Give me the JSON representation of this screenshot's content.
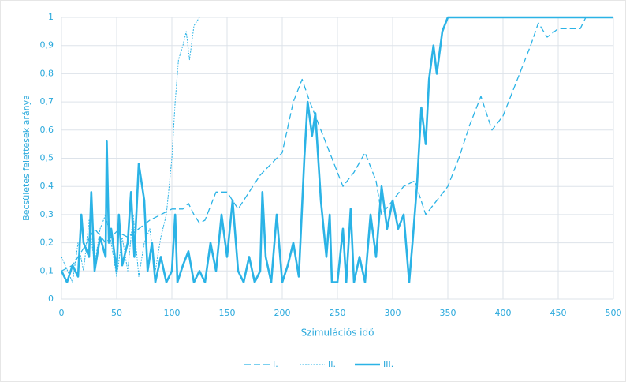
{
  "chart_data": {
    "type": "line",
    "x_label": "Szimulációs idő",
    "y_label": "Becsületes felettesek aránya",
    "xlim": [
      0,
      500
    ],
    "xticks": [
      0,
      50,
      100,
      150,
      200,
      250,
      300,
      350,
      400,
      450,
      500
    ],
    "ylim": [
      0,
      1
    ],
    "yticks": [
      0,
      {
        "value": 0.1,
        "label": "0,1"
      },
      {
        "value": 0.2,
        "label": "0,2"
      },
      {
        "value": 0.3,
        "label": "0,3"
      },
      {
        "value": 0.4,
        "label": "0,4"
      },
      {
        "value": 0.5,
        "label": "0,5"
      },
      {
        "value": 0.6,
        "label": "0,6"
      },
      {
        "value": 0.7,
        "label": "0,7"
      },
      {
        "value": 0.8,
        "label": "0,8"
      },
      {
        "value": 0.9,
        "label": "0,9"
      },
      1
    ],
    "grid": true,
    "legend": "bottom",
    "series": [
      {
        "name": "I.",
        "color": "#2bb3e6",
        "dash": "dashed",
        "x": [
          0,
          10,
          20,
          30,
          40,
          50,
          60,
          70,
          80,
          90,
          100,
          110,
          115,
          120,
          125,
          130,
          140,
          150,
          160,
          170,
          180,
          190,
          200,
          210,
          218,
          225,
          235,
          245,
          255,
          265,
          275,
          285,
          290,
          300,
          310,
          320,
          330,
          340,
          350,
          360,
          370,
          380,
          390,
          400,
          415,
          425,
          432,
          440,
          450,
          470,
          475,
          500
        ],
        "values": [
          0.1,
          0.12,
          0.18,
          0.25,
          0.2,
          0.24,
          0.22,
          0.25,
          0.28,
          0.3,
          0.32,
          0.32,
          0.34,
          0.3,
          0.27,
          0.28,
          0.38,
          0.38,
          0.32,
          0.38,
          0.44,
          0.48,
          0.52,
          0.7,
          0.78,
          0.7,
          0.6,
          0.5,
          0.4,
          0.45,
          0.52,
          0.42,
          0.3,
          0.35,
          0.4,
          0.42,
          0.3,
          0.35,
          0.4,
          0.5,
          0.62,
          0.72,
          0.6,
          0.65,
          0.8,
          0.9,
          0.98,
          0.93,
          0.96,
          0.96,
          1,
          1
        ]
      },
      {
        "name": "II.",
        "color": "#2bb3e6",
        "dash": "dotted",
        "x": [
          0,
          10,
          15,
          20,
          25,
          30,
          35,
          40,
          45,
          50,
          55,
          60,
          65,
          70,
          75,
          80,
          85,
          90,
          95,
          100,
          103,
          106,
          110,
          113,
          116,
          120,
          125
        ],
        "values": [
          0.15,
          0.06,
          0.2,
          0.1,
          0.28,
          0.12,
          0.25,
          0.3,
          0.2,
          0.08,
          0.22,
          0.1,
          0.3,
          0.08,
          0.2,
          0.25,
          0.1,
          0.22,
          0.3,
          0.5,
          0.7,
          0.85,
          0.9,
          0.95,
          0.85,
          0.97,
          1
        ]
      },
      {
        "name": "III.",
        "color": "#2bb3e6",
        "dash": "solid",
        "x": [
          0,
          5,
          10,
          15,
          18,
          20,
          25,
          27,
          30,
          35,
          40,
          41,
          43,
          45,
          50,
          52,
          55,
          60,
          63,
          66,
          70,
          75,
          78,
          82,
          85,
          90,
          95,
          100,
          103,
          105,
          110,
          115,
          120,
          125,
          130,
          135,
          140,
          145,
          150,
          155,
          160,
          165,
          170,
          175,
          180,
          182,
          185,
          190,
          195,
          200,
          205,
          210,
          215,
          220,
          223,
          227,
          230,
          235,
          240,
          243,
          245,
          250,
          255,
          258,
          262,
          265,
          270,
          275,
          280,
          285,
          290,
          295,
          300,
          305,
          310,
          315,
          318,
          322,
          326,
          330,
          333,
          337,
          340,
          345,
          350,
          400,
          450,
          500
        ],
        "values": [
          0.1,
          0.06,
          0.12,
          0.08,
          0.3,
          0.2,
          0.15,
          0.38,
          0.1,
          0.22,
          0.15,
          0.56,
          0.2,
          0.25,
          0.1,
          0.3,
          0.12,
          0.2,
          0.38,
          0.15,
          0.48,
          0.35,
          0.1,
          0.2,
          0.06,
          0.15,
          0.06,
          0.1,
          0.3,
          0.06,
          0.12,
          0.17,
          0.06,
          0.1,
          0.06,
          0.2,
          0.1,
          0.3,
          0.15,
          0.35,
          0.1,
          0.06,
          0.15,
          0.06,
          0.1,
          0.38,
          0.15,
          0.06,
          0.3,
          0.06,
          0.12,
          0.2,
          0.08,
          0.5,
          0.7,
          0.58,
          0.66,
          0.35,
          0.15,
          0.3,
          0.06,
          0.06,
          0.25,
          0.06,
          0.32,
          0.06,
          0.15,
          0.06,
          0.3,
          0.15,
          0.4,
          0.25,
          0.35,
          0.25,
          0.3,
          0.06,
          0.2,
          0.4,
          0.68,
          0.55,
          0.78,
          0.9,
          0.8,
          0.95,
          1,
          1,
          1,
          1
        ]
      }
    ]
  }
}
